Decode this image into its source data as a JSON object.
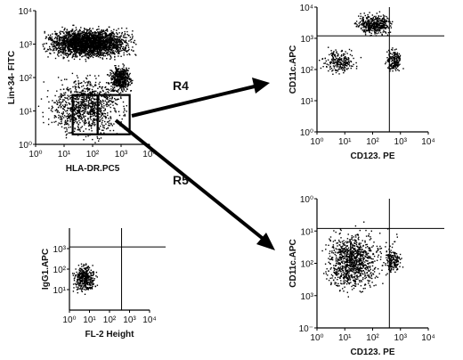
{
  "chart_data": [
    {
      "type": "scatter",
      "xlabel": "HLA-DR.PC5",
      "ylabel": "Lin+34- FITC",
      "xscale": "log",
      "yscale": "log",
      "xlim": [
        1,
        10000
      ],
      "ylim": [
        1,
        10000
      ],
      "x_ticks": [
        "10⁰",
        "10¹",
        "10²",
        "10³",
        "10⁴"
      ],
      "y_ticks": [
        "10⁰",
        "10¹",
        "10²",
        "10³",
        "10⁴"
      ],
      "gates": [
        {
          "label": "R4",
          "x": [
            20,
            150
          ],
          "y": [
            2,
            30
          ]
        },
        {
          "label": "R5",
          "x": [
            150,
            2000
          ],
          "y": [
            2,
            30
          ]
        }
      ],
      "clusters": [
        {
          "x": [
            1,
            5000
          ],
          "y": [
            300,
            4000
          ],
          "count": 2600
        },
        {
          "x": [
            300,
            3000
          ],
          "y": [
            30,
            300
          ],
          "count": 500
        },
        {
          "x": [
            1,
            3000
          ],
          "y": [
            1,
            200
          ],
          "count": 1000
        }
      ]
    },
    {
      "type": "scatter",
      "xlabel": "CD123. PE",
      "ylabel": "CD11c.APC",
      "xscale": "log",
      "yscale": "log",
      "xlim": [
        1,
        10000
      ],
      "ylim": [
        1,
        10000
      ],
      "x_ticks": [
        "10⁰",
        "10¹",
        "10²",
        "10³",
        "10⁴"
      ],
      "y_ticks": [
        "10⁰",
        "10¹",
        "10²",
        "10³",
        "10⁴"
      ],
      "quadrant": {
        "x": 400,
        "y": 1200
      },
      "clusters": [
        {
          "x": [
            15,
            800
          ],
          "y": [
            1000,
            9000
          ],
          "count": 420
        },
        {
          "x": [
            1,
            40
          ],
          "y": [
            60,
            600
          ],
          "count": 230
        },
        {
          "x": [
            250,
            1300
          ],
          "y": [
            60,
            600
          ],
          "count": 180
        }
      ]
    },
    {
      "type": "scatter",
      "xlabel": "CD123. PE",
      "ylabel": "CD11c.APC",
      "xscale": "log",
      "yscale": "log",
      "xlim": [
        1,
        10000
      ],
      "ylim": [
        1,
        10000
      ],
      "x_ticks": [
        "10⁰",
        "10¹",
        "10²",
        "10³",
        "10⁴"
      ],
      "y_ticks": [
        "10⁻",
        "10³",
        "10²",
        "10¹",
        "10⁰"
      ],
      "quadrant": {
        "x": 400,
        "y": 1200
      },
      "clusters": [
        {
          "x": [
            1,
            300
          ],
          "y": [
            8,
            1500
          ],
          "count": 900
        },
        {
          "x": [
            200,
            1300
          ],
          "y": [
            40,
            400
          ],
          "count": 160
        },
        {
          "x": [
            1,
            3000
          ],
          "y": [
            10,
            6000
          ],
          "count": 90
        }
      ]
    },
    {
      "type": "scatter",
      "xlabel": "FL-2 Height",
      "ylabel": "IgG1.APC",
      "xscale": "log",
      "yscale": "log",
      "xlim": [
        1,
        10000
      ],
      "ylim": [
        1,
        10000
      ],
      "x_ticks": [
        "10⁰",
        "10¹",
        "10²",
        "10³",
        "10⁴"
      ],
      "y_ticks": [
        "10¹",
        "10²",
        "10³"
      ],
      "quadrant": {
        "x": 400,
        "y": 1200
      },
      "clusters": [
        {
          "x": [
            1,
            30
          ],
          "y": [
            5,
            300
          ],
          "count": 380
        }
      ]
    }
  ],
  "region_labels": [
    "R4",
    "R5"
  ]
}
